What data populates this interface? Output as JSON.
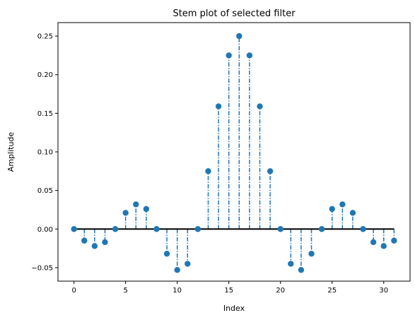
{
  "chart_data": {
    "type": "stem",
    "title": "Stem plot of selected filter",
    "xlabel": "Index",
    "ylabel": "Amplitude",
    "xlim": [
      -1.55,
      32.55
    ],
    "ylim": [
      -0.0675,
      0.2675
    ],
    "xticks": [
      0,
      5,
      10,
      15,
      20,
      25,
      30
    ],
    "xtick_labels": [
      "0",
      "5",
      "10",
      "15",
      "20",
      "25",
      "30"
    ],
    "yticks": [
      -0.05,
      0.0,
      0.05,
      0.1,
      0.15,
      0.2,
      0.25
    ],
    "ytick_labels": [
      "−0.05",
      "0.00",
      "0.05",
      "0.10",
      "0.15",
      "0.20",
      "0.25"
    ],
    "grid": false,
    "baseline": 0,
    "colors": {
      "stem": "#1f77b4",
      "marker": "#1f77b4",
      "baseline": "#000000"
    },
    "x": [
      0,
      1,
      2,
      3,
      4,
      5,
      6,
      7,
      8,
      9,
      10,
      11,
      12,
      13,
      14,
      15,
      16,
      17,
      18,
      19,
      20,
      21,
      22,
      23,
      24,
      25,
      26,
      27,
      28,
      29,
      30,
      31
    ],
    "values": [
      0.0,
      -0.015,
      -0.022,
      -0.017,
      0.0,
      0.021,
      0.032,
      0.026,
      0.0,
      -0.032,
      -0.053,
      -0.045,
      0.0,
      0.075,
      0.159,
      0.225,
      0.25,
      0.225,
      0.159,
      0.075,
      0.0,
      -0.045,
      -0.053,
      -0.032,
      0.0,
      0.026,
      0.032,
      0.021,
      0.0,
      -0.017,
      -0.022,
      -0.015
    ]
  }
}
